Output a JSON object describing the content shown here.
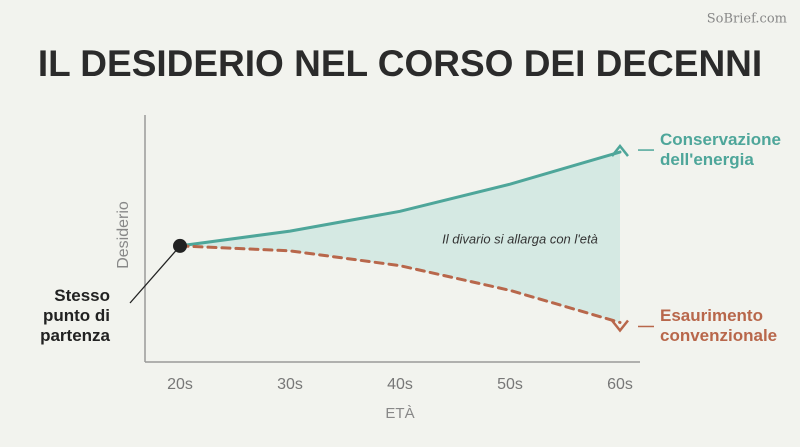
{
  "brand": "SoBrief.com",
  "chart_data": {
    "type": "line",
    "title": "IL DESIDERIO NEL CORSO DEI DECENNI",
    "x_label": "ETÀ",
    "y_label": "Desiderio",
    "categories": [
      "20s",
      "30s",
      "40s",
      "50s",
      "60s"
    ],
    "series": [
      {
        "name": "Conservazione dell'energia",
        "color": "#4ea69a",
        "dashed": false,
        "values": [
          47,
          53,
          61,
          72,
          85
        ]
      },
      {
        "name": "Esaurimento convenzionale",
        "color": "#b8674b",
        "dashed": true,
        "values": [
          47,
          45,
          39,
          29,
          16
        ]
      }
    ],
    "ylim": [
      0,
      100
    ],
    "fill_between": true,
    "fill_color": "#d5e9e3",
    "annotations": [
      "Stesso punto di partenza",
      "Il divario si allarga con l'età"
    ]
  }
}
